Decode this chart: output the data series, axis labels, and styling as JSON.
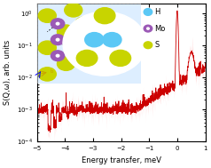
{
  "xlim": [
    -5,
    1
  ],
  "ylim_log": [
    0.0001,
    2
  ],
  "xlabel": "Energy transfer, meV",
  "ylabel": "S(Q,ω), arb. units",
  "bg_color": "#ffffff",
  "line_color": "#cc0000",
  "fill_color": "#ffb0b0",
  "peak_x": 0.0,
  "peak_y": 1.0,
  "legend_labels": [
    "H",
    "Mo",
    "S"
  ],
  "legend_colors": [
    "#5bc8f5",
    "#9b59b6",
    "#c8d400"
  ],
  "title_fontsize": 7,
  "axis_fontsize": 6,
  "tick_fontsize": 5
}
